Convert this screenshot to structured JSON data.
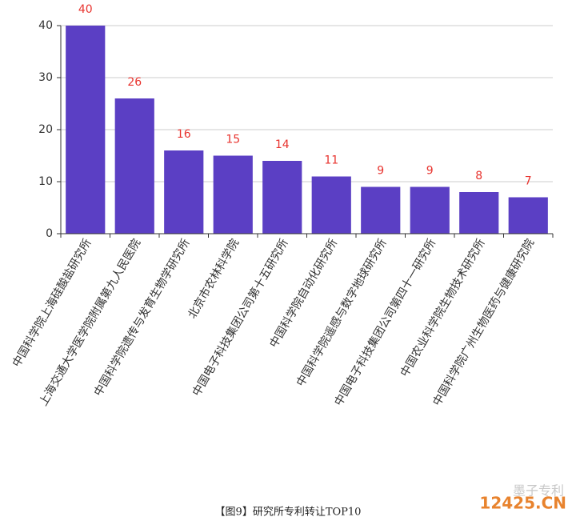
{
  "chart_data": {
    "type": "bar",
    "categories": [
      "中国科学院上海硅酸盐研究所",
      "上海交通大学医学院附属第九人民医院",
      "中国科学院遗传与发育生物学研究所",
      "北京市农林科学院",
      "中国电子科技集团公司第十五研究所",
      "中国科学院自动化研究所",
      "中国科学院遥感与数字地球研究所",
      "中国电子科技集团公司第四十一研究所",
      "中国农业科学院生物技术研究所",
      "中国科学院广州生物医药与健康研究院"
    ],
    "values": [
      40,
      26,
      16,
      15,
      14,
      11,
      9,
      9,
      8,
      7
    ],
    "color": "#5b3fc4",
    "label_color": "#e8332e",
    "ylim": [
      0,
      40
    ],
    "yticks": [
      0,
      10,
      20,
      30,
      40
    ],
    "grid": true
  },
  "caption": "【图9】研究所专利转让TOP10",
  "watermark": [
    "墨子专利",
    "12425.CN"
  ]
}
